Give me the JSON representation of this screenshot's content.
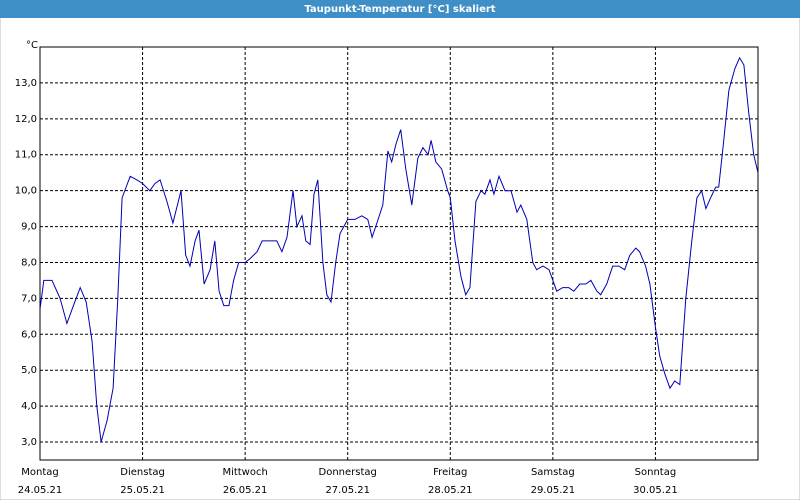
{
  "chart_data": {
    "type": "line",
    "title": "Taupunkt-Temperatur [°C] skaliert",
    "y_label": "°C",
    "x": [
      0,
      0.9,
      2.8,
      4.7,
      6.3,
      7.5,
      9.4,
      10.8,
      12.2,
      13.3,
      14.3,
      15.7,
      17.1,
      18.2,
      19.2,
      21.1,
      22.7,
      24,
      25.7,
      26.9,
      28.1,
      29.7,
      31.1,
      33.0,
      34.1,
      35.1,
      36.3,
      37.2,
      38.4,
      39.8,
      40.9,
      41.9,
      43.0,
      44.2,
      45.3,
      46.5,
      48,
      49.1,
      50.8,
      52.0,
      53.8,
      55.4,
      56.6,
      57.8,
      59.2,
      60.1,
      61.3,
      62.2,
      63.2,
      64.1,
      65.0,
      66.2,
      67.1,
      68.1,
      69.2,
      70.2,
      72,
      73.7,
      75.3,
      76.7,
      77.7,
      79.1,
      80.2,
      81.4,
      82.3,
      83.3,
      84.4,
      85.6,
      87.0,
      88.4,
      89.6,
      90.8,
      91.5,
      92.6,
      94.0,
      95.4,
      96,
      97.1,
      98.5,
      99.6,
      100.6,
      102.0,
      103.2,
      104.1,
      105.3,
      106.2,
      107.4,
      108.8,
      110.2,
      111.6,
      112.5,
      113.9,
      115.3,
      116.2,
      117.7,
      119.1,
      120,
      120.9,
      122.3,
      123.7,
      124.9,
      126.3,
      127.7,
      128.9,
      130.3,
      131.2,
      132.6,
      134.0,
      135.4,
      136.8,
      138.0,
      139.4,
      140.3,
      141.7,
      142.7,
      144,
      145.0,
      146.2,
      147.4,
      148.5,
      149.7,
      151.1,
      152.5,
      153.7,
      154.8,
      155.8,
      156.9,
      158.1,
      158.8,
      159.8,
      161.2,
      162.6,
      163.7,
      164.7,
      165.8,
      167.0,
      168
    ],
    "series": [
      {
        "name": "Taupunkt",
        "color": "#0000b4",
        "values": [
          6.7,
          7.5,
          7.5,
          7.0,
          6.3,
          6.7,
          7.3,
          6.9,
          5.8,
          4.0,
          3.0,
          3.6,
          4.5,
          7.0,
          9.8,
          10.4,
          10.3,
          10.2,
          10.0,
          10.2,
          10.3,
          9.7,
          9.1,
          10.0,
          8.2,
          7.9,
          8.6,
          8.9,
          7.4,
          7.8,
          8.6,
          7.2,
          6.8,
          6.8,
          7.5,
          8.0,
          8.0,
          8.1,
          8.3,
          8.6,
          8.6,
          8.6,
          8.3,
          8.7,
          10.0,
          9.0,
          9.3,
          8.6,
          8.5,
          9.9,
          10.3,
          8.0,
          7.1,
          6.9,
          8.0,
          8.8,
          9.2,
          9.2,
          9.3,
          9.2,
          8.7,
          9.2,
          9.6,
          11.1,
          10.8,
          11.3,
          11.7,
          10.6,
          9.6,
          10.9,
          11.2,
          11.0,
          11.4,
          10.8,
          10.6,
          10.0,
          9.8,
          8.6,
          7.6,
          7.1,
          7.3,
          9.7,
          10.0,
          9.9,
          10.3,
          9.9,
          10.4,
          10.0,
          10.0,
          9.4,
          9.6,
          9.2,
          8.0,
          7.8,
          7.9,
          7.8,
          7.5,
          7.2,
          7.3,
          7.3,
          7.2,
          7.4,
          7.4,
          7.5,
          7.2,
          7.1,
          7.4,
          7.9,
          7.9,
          7.8,
          8.2,
          8.4,
          8.3,
          7.9,
          7.4,
          6.2,
          5.4,
          4.9,
          4.5,
          4.7,
          4.6,
          7.0,
          8.6,
          9.8,
          10.0,
          9.5,
          9.8,
          10.1,
          10.1,
          11.2,
          12.8,
          13.4,
          13.7,
          13.5,
          12.2,
          11.0,
          10.5
        ]
      }
    ],
    "xlim": [
      0,
      168
    ],
    "xticks": [
      {
        "value": 0,
        "label": "Montag"
      },
      {
        "value": 24,
        "label": "Dienstag"
      },
      {
        "value": 48,
        "label": "Mittwoch"
      },
      {
        "value": 72,
        "label": "Donnerstag"
      },
      {
        "value": 96,
        "label": "Freitag"
      },
      {
        "value": 120,
        "label": "Samstag"
      },
      {
        "value": 144,
        "label": "Sonntag"
      }
    ],
    "xtick_dates": [
      "24.05.21",
      "25.05.21",
      "26.05.21",
      "27.05.21",
      "28.05.21",
      "29.05.21",
      "30.05.21"
    ],
    "ylim": [
      2.5,
      14.0
    ],
    "yticks": [
      {
        "value": 3,
        "label": "3,0"
      },
      {
        "value": 4,
        "label": "4,0"
      },
      {
        "value": 5,
        "label": "5,0"
      },
      {
        "value": 6,
        "label": "6,0"
      },
      {
        "value": 7,
        "label": "7,0"
      },
      {
        "value": 8,
        "label": "8,0"
      },
      {
        "value": 9,
        "label": "9,0"
      },
      {
        "value": 10,
        "label": "10,0"
      },
      {
        "value": 11,
        "label": "11,0"
      },
      {
        "value": 12,
        "label": "12,0"
      },
      {
        "value": 13,
        "label": "13,0"
      }
    ],
    "grid": true
  }
}
